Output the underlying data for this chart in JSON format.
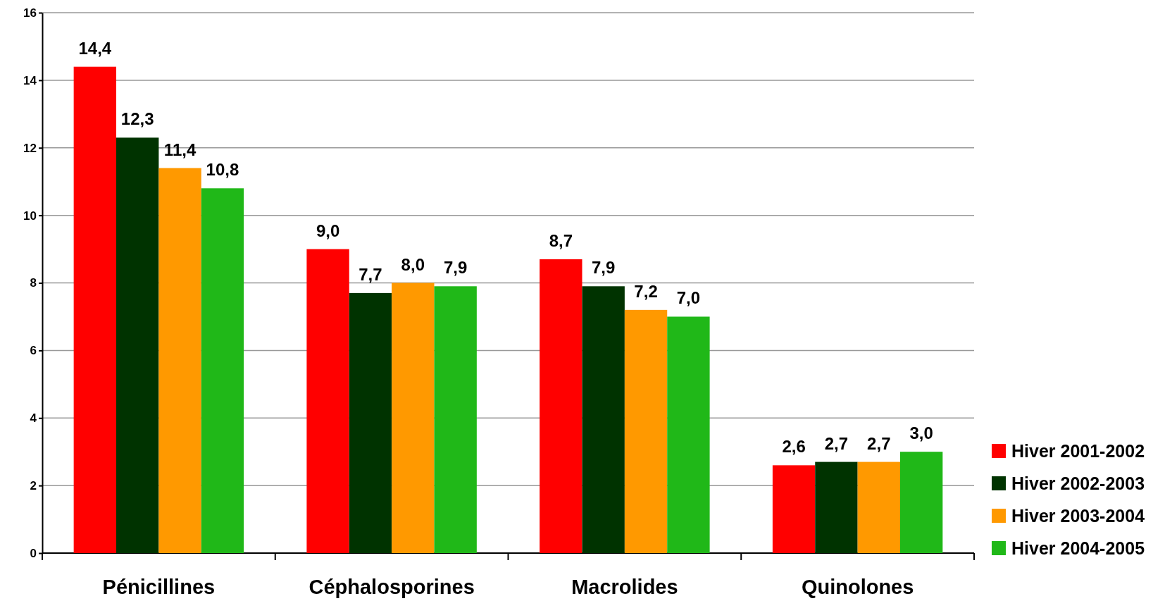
{
  "chart_data": {
    "type": "bar",
    "categories": [
      "Pénicillines",
      "Céphalosporines",
      "Macrolides",
      "Quinolones"
    ],
    "series": [
      {
        "name": "Hiver 2001-2002",
        "color": "#ff0000",
        "values": [
          14.4,
          9.0,
          8.7,
          2.6
        ],
        "value_labels": [
          "14,4",
          "9,0",
          "8,7",
          "2,6"
        ]
      },
      {
        "name": "Hiver 2002-2003",
        "color": "#003300",
        "values": [
          12.3,
          7.7,
          7.9,
          2.7
        ],
        "value_labels": [
          "12,3",
          "7,7",
          "7,9",
          "2,7"
        ]
      },
      {
        "name": "Hiver 2003-2004",
        "color": "#ff9900",
        "values": [
          11.4,
          8.0,
          7.2,
          2.7
        ],
        "value_labels": [
          "11,4",
          "8,0",
          "7,2",
          "2,7"
        ]
      },
      {
        "name": "Hiver 2004-2005",
        "color": "#20b818",
        "values": [
          10.8,
          7.9,
          7.0,
          3.0
        ],
        "value_labels": [
          "10,8",
          "7,9",
          "7,0",
          "3,0"
        ]
      }
    ],
    "ylim": [
      0,
      16
    ],
    "yticks": [
      0,
      2,
      4,
      6,
      8,
      10,
      12,
      14,
      16
    ],
    "grid": "y",
    "legend": "bottom right"
  }
}
